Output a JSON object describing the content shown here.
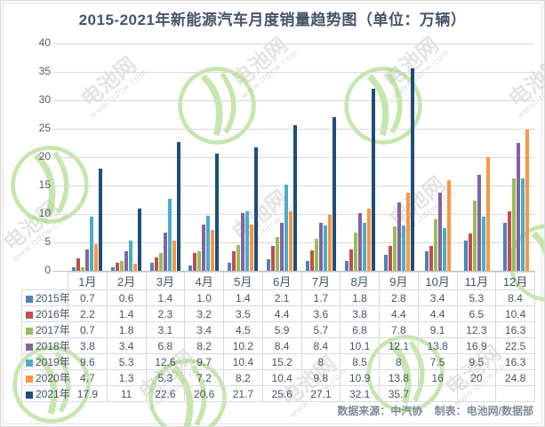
{
  "page": {
    "title": "2015-2021年新能源汽车月度销量趋势图（单位：万辆）",
    "footer": {
      "source": "数据来源：中汽协",
      "maker": "制表：电池网/数据部"
    },
    "watermark": {
      "brand": "电池网",
      "url": "www.itdcw.com"
    }
  },
  "chart_data": {
    "type": "bar",
    "title": "2015-2021年新能源汽车月度销量趋势图",
    "unit_note": "单位：万辆",
    "xlabel": "",
    "ylabel": "",
    "ylim": [
      0,
      40
    ],
    "ystep": 5,
    "yticks": [
      0,
      5,
      10,
      15,
      20,
      25,
      30,
      35,
      40
    ],
    "grid": true,
    "legend_position": "table-left-column",
    "categories": [
      "1月",
      "2月",
      "3月",
      "4月",
      "5月",
      "6月",
      "7月",
      "8月",
      "9月",
      "10月",
      "11月",
      "12月"
    ],
    "series": [
      {
        "name": "2015年",
        "color": "#4F81BD",
        "values": [
          0.7,
          0.6,
          1.4,
          1.0,
          1.4,
          2.1,
          1.7,
          1.8,
          2.8,
          3.4,
          5.3,
          8.4
        ],
        "labels": [
          "0.7",
          "0.6",
          "1.4",
          "1.0",
          "1.4",
          "2.1",
          "1.7",
          "1.8",
          "2.8",
          "3.4",
          "5.3",
          "8.4"
        ]
      },
      {
        "name": "2016年",
        "color": "#C0504D",
        "values": [
          2.2,
          1.4,
          2.3,
          3.2,
          3.5,
          4.4,
          3.6,
          3.8,
          4.4,
          4.4,
          6.5,
          10.4
        ],
        "labels": [
          "2.2",
          "1.4",
          "2.3",
          "3.2",
          "3.5",
          "4.4",
          "3.6",
          "3.8",
          "4.4",
          "4.4",
          "6.5",
          "10.4"
        ]
      },
      {
        "name": "2017年",
        "color": "#9BBB59",
        "values": [
          0.7,
          1.8,
          3.1,
          3.4,
          4.5,
          5.9,
          5.7,
          6.8,
          7.8,
          9.1,
          12.3,
          16.3
        ],
        "labels": [
          "0.7",
          "1.8",
          "3.1",
          "3.4",
          "4.5",
          "5.9",
          "5.7",
          "6.8",
          "7.8",
          "9.1",
          "12.3",
          "16.3"
        ]
      },
      {
        "name": "2018年",
        "color": "#8064A2",
        "values": [
          3.8,
          3.4,
          6.8,
          8.2,
          10.2,
          8.4,
          8.4,
          10.1,
          12.1,
          13.8,
          16.9,
          22.5
        ],
        "labels": [
          "3.8",
          "3.4",
          "6.8",
          "8.2",
          "10.2",
          "8.4",
          "8.4",
          "10.1",
          "12.1",
          "13.8",
          "16.9",
          "22.5"
        ]
      },
      {
        "name": "2019年",
        "color": "#4BACC6",
        "values": [
          9.6,
          5.3,
          12.6,
          9.7,
          10.4,
          15.2,
          8,
          8.5,
          8,
          7.5,
          9.5,
          16.3
        ],
        "labels": [
          "9.6",
          "5.3",
          "12.6",
          "9.7",
          "10.4",
          "15.2",
          "8",
          "8.5",
          "8",
          "7.5",
          "9.5",
          "16.3"
        ]
      },
      {
        "name": "2020年",
        "color": "#F79646",
        "values": [
          4.7,
          1.3,
          5.3,
          7.2,
          8.2,
          10.4,
          9.8,
          10.9,
          13.8,
          16,
          20,
          24.8
        ],
        "labels": [
          "4.7",
          "1.3",
          "5.3",
          "7.2",
          "8.2",
          "10.4",
          "9.8",
          "10.9",
          "13.8",
          "16",
          "20",
          "24.8"
        ]
      },
      {
        "name": "2021年",
        "color": "#1F4E79",
        "values": [
          17.9,
          11,
          22.6,
          20.6,
          21.7,
          25.6,
          27.1,
          32.1,
          35.7,
          null,
          null,
          null
        ],
        "labels": [
          "17.9",
          "11",
          "22.6",
          "20.6",
          "21.7",
          "25.6",
          "27.1",
          "32.1",
          "35.7",
          "",
          "",
          ""
        ]
      }
    ]
  }
}
